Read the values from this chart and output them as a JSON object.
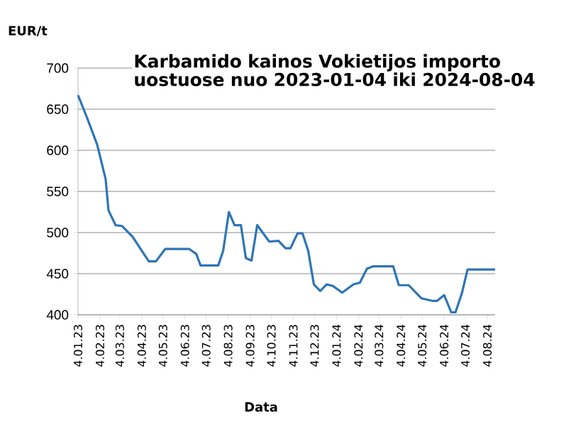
{
  "chart_data": {
    "type": "line",
    "title": "Karbamido kainos Vokietijos importo uostuose nuo 2023-01-04 iki 2024-08-04",
    "xlabel": "Data",
    "ylabel": "EUR/t",
    "x": [
      "2023-01-04",
      "2023-01-17",
      "2023-01-31",
      "2023-02-12",
      "2023-02-16",
      "2023-02-26",
      "2023-03-07",
      "2023-03-22",
      "2023-04-04",
      "2023-04-14",
      "2023-04-24",
      "2023-05-07",
      "2023-06-10",
      "2023-06-20",
      "2023-06-26",
      "2023-07-21",
      "2023-07-28",
      "2023-08-05",
      "2023-08-13",
      "2023-08-22",
      "2023-08-29",
      "2023-09-06",
      "2023-09-14",
      "2023-10-01",
      "2023-10-14",
      "2023-10-24",
      "2023-10-31",
      "2023-11-10",
      "2023-11-17",
      "2023-11-25",
      "2023-12-03",
      "2023-12-12",
      "2023-12-21",
      "2023-12-30",
      "2024-01-12",
      "2024-01-28",
      "2024-02-06",
      "2024-02-16",
      "2024-02-25",
      "2024-03-24",
      "2024-04-01",
      "2024-04-15",
      "2024-05-03",
      "2024-05-18",
      "2024-05-25",
      "2024-06-04",
      "2024-06-14",
      "2024-06-20",
      "2024-06-29",
      "2024-07-07",
      "2024-08-15"
    ],
    "series": [
      {
        "color": "#2e75b6",
        "values": [
          667,
          639,
          607,
          565,
          527,
          509,
          508,
          495,
          478,
          465,
          465,
          480,
          480,
          474,
          460,
          460,
          478,
          525,
          509,
          509,
          469,
          466,
          509,
          489,
          490,
          481,
          481,
          499,
          499,
          478,
          437,
          429,
          437,
          435,
          427,
          437,
          439,
          456,
          459,
          459,
          436,
          436,
          420,
          417,
          417,
          424,
          403,
          403,
          426,
          455,
          455
        ]
      }
    ],
    "xlim": [
      "2023-01-04",
      "2024-08-15"
    ],
    "xticks": [
      {
        "value": "2023-01-04",
        "label": "4.01.23"
      },
      {
        "value": "2023-02-04",
        "label": "4.02.23"
      },
      {
        "value": "2023-03-04",
        "label": "4.03.23"
      },
      {
        "value": "2023-04-04",
        "label": "4.04.23"
      },
      {
        "value": "2023-05-04",
        "label": "4.05.23"
      },
      {
        "value": "2023-06-04",
        "label": "4.06.23"
      },
      {
        "value": "2023-07-04",
        "label": "4.07.23"
      },
      {
        "value": "2023-08-04",
        "label": "4.08.23"
      },
      {
        "value": "2023-09-04",
        "label": "4.09.23"
      },
      {
        "value": "2023-10-04",
        "label": "4.10.23"
      },
      {
        "value": "2023-11-04",
        "label": "4.11.23"
      },
      {
        "value": "2023-12-04",
        "label": "4.12.23"
      },
      {
        "value": "2024-01-04",
        "label": "4.01.24"
      },
      {
        "value": "2024-02-04",
        "label": "4.02.24"
      },
      {
        "value": "2024-03-04",
        "label": "4.03.24"
      },
      {
        "value": "2024-04-04",
        "label": "4.04.24"
      },
      {
        "value": "2024-05-04",
        "label": "4.05.24"
      },
      {
        "value": "2024-06-04",
        "label": "4.06.24"
      },
      {
        "value": "2024-07-04",
        "label": "4.07.24"
      },
      {
        "value": "2024-08-04",
        "label": "4.08.24"
      }
    ],
    "ylim": [
      400,
      700
    ],
    "yticks": [
      400,
      450,
      500,
      550,
      600,
      650,
      700
    ],
    "grid": "y"
  }
}
